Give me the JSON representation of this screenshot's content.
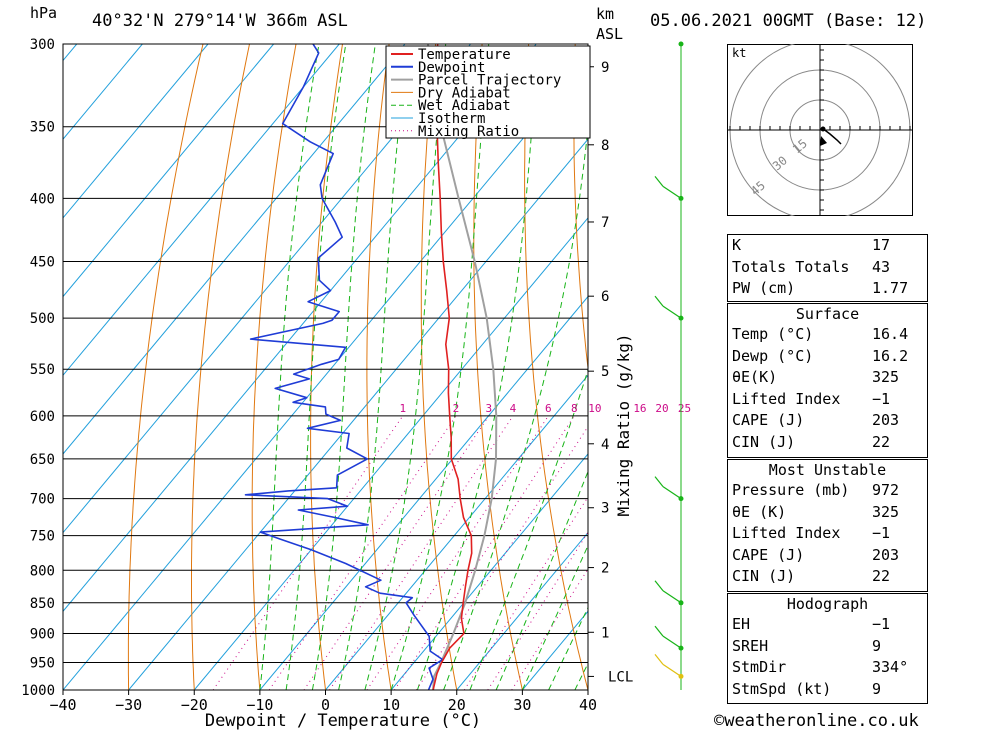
{
  "header": {
    "hpa_label": "hPa",
    "location": "40°32'N  279°14'W  366m  ASL",
    "km_label": "km",
    "asl_label": "ASL",
    "datetime": "05.06.2021  00GMT  (Base: 12)"
  },
  "chart_data": {
    "type": "line",
    "subtype": "skew-T log-P",
    "xlabel": "Dewpoint / Temperature (°C)",
    "ylabel": "hPa",
    "mixing_ratio_axis_label": "Mixing Ratio (g/kg)",
    "x_range": [
      -40,
      40
    ],
    "x_ticks": [
      "−40",
      "−30",
      "−20",
      "−10",
      "0",
      "10",
      "20",
      "30",
      "40"
    ],
    "p_range": [
      300,
      1000
    ],
    "p_ticks": [
      "300",
      "350",
      "400",
      "450",
      "500",
      "550",
      "600",
      "650",
      "700",
      "750",
      "800",
      "850",
      "900",
      "950",
      "1000"
    ],
    "km_ticks": [
      {
        "label": "9",
        "p": 313
      },
      {
        "label": "8",
        "p": 362
      },
      {
        "label": "7",
        "p": 418
      },
      {
        "label": "6",
        "p": 480
      },
      {
        "label": "5",
        "p": 552
      },
      {
        "label": "4",
        "p": 632
      },
      {
        "label": "3",
        "p": 712
      },
      {
        "label": "2",
        "p": 796
      },
      {
        "label": "1",
        "p": 898
      },
      {
        "label": "LCL",
        "p": 975
      }
    ],
    "mixing_ratio_labels": [
      "1",
      "2",
      "3",
      "4",
      "6",
      "8",
      "10",
      "16",
      "20",
      "25"
    ],
    "legend": [
      {
        "name": "Temperature",
        "color": "#e02020",
        "style": "solid"
      },
      {
        "name": "Dewpoint",
        "color": "#1f3cd6",
        "style": "solid"
      },
      {
        "name": "Parcel Trajectory",
        "color": "#a0a0a0",
        "style": "solid"
      },
      {
        "name": "Dry Adiabat",
        "color": "#e07810",
        "style": "solid"
      },
      {
        "name": "Wet Adiabat",
        "color": "#18b418",
        "style": "dashed"
      },
      {
        "name": "Isotherm",
        "color": "#22a0dc",
        "style": "solid"
      },
      {
        "name": "Mixing Ratio",
        "color": "#cc0a88",
        "style": "dotted"
      }
    ],
    "temperature": [
      [
        1000,
        16.4
      ],
      [
        970,
        14.9
      ],
      [
        950,
        14.2
      ],
      [
        925,
        13.6
      ],
      [
        900,
        13.9
      ],
      [
        875,
        11.6
      ],
      [
        850,
        9.9
      ],
      [
        825,
        8.2
      ],
      [
        800,
        6.5
      ],
      [
        775,
        4.9
      ],
      [
        750,
        2.6
      ],
      [
        725,
        -0.9
      ],
      [
        700,
        -3.8
      ],
      [
        675,
        -6.6
      ],
      [
        650,
        -10.2
      ],
      [
        625,
        -12.9
      ],
      [
        600,
        -15.9
      ],
      [
        575,
        -19.0
      ],
      [
        550,
        -22.0
      ],
      [
        525,
        -25.6
      ],
      [
        500,
        -28.4
      ],
      [
        475,
        -32.3
      ],
      [
        450,
        -36.5
      ],
      [
        425,
        -40.7
      ],
      [
        400,
        -45.0
      ],
      [
        375,
        -49.7
      ],
      [
        350,
        -54.6
      ],
      [
        325,
        -60.2
      ],
      [
        300,
        -65.0
      ]
    ],
    "dewpoint": [
      [
        1000,
        15.7
      ],
      [
        980,
        15.0
      ],
      [
        960,
        13.0
      ],
      [
        945,
        14.0
      ],
      [
        930,
        11.0
      ],
      [
        905,
        9.0
      ],
      [
        870,
        4.0
      ],
      [
        850,
        1.2
      ],
      [
        842,
        1.5
      ],
      [
        835,
        -4.0
      ],
      [
        825,
        -7.0
      ],
      [
        815,
        -5.5
      ],
      [
        790,
        -13.0
      ],
      [
        770,
        -20.0
      ],
      [
        755,
        -26.0
      ],
      [
        745,
        -30.0
      ],
      [
        735,
        -14.5
      ],
      [
        725,
        -20.5
      ],
      [
        715,
        -27.0
      ],
      [
        710,
        -20.0
      ],
      [
        700,
        -24.0
      ],
      [
        695,
        -37.0
      ],
      [
        690,
        -31.0
      ],
      [
        686,
        -24.0
      ],
      [
        670,
        -25.5
      ],
      [
        650,
        -23.0
      ],
      [
        637,
        -27.5
      ],
      [
        620,
        -29.0
      ],
      [
        614,
        -36.0
      ],
      [
        605,
        -32.0
      ],
      [
        598,
        -35.0
      ],
      [
        590,
        -36.0
      ],
      [
        585,
        -41.5
      ],
      [
        580,
        -40.0
      ],
      [
        570,
        -46.0
      ],
      [
        560,
        -42.0
      ],
      [
        555,
        -45.0
      ],
      [
        545,
        -42.0
      ],
      [
        540,
        -40.0
      ],
      [
        528,
        -40.5
      ],
      [
        520,
        -56.0
      ],
      [
        505,
        -47.0
      ],
      [
        502,
        -46.0
      ],
      [
        494,
        -46.0
      ],
      [
        485,
        -52.0
      ],
      [
        475,
        -50.0
      ],
      [
        466,
        -53.0
      ],
      [
        447,
        -56.0
      ],
      [
        430,
        -55.0
      ],
      [
        418,
        -58.0
      ],
      [
        400,
        -63.0
      ],
      [
        390,
        -65.0
      ],
      [
        368,
        -67.0
      ],
      [
        360,
        -72.0
      ],
      [
        348,
        -78.5
      ],
      [
        325,
        -80.0
      ],
      [
        305,
        -82.0
      ],
      [
        300,
        -84.0
      ]
    ],
    "parcel": [
      [
        1000,
        16.4
      ],
      [
        975,
        14.8
      ],
      [
        950,
        14.1
      ],
      [
        900,
        12.3
      ],
      [
        850,
        10.2
      ],
      [
        800,
        7.6
      ],
      [
        750,
        4.6
      ],
      [
        700,
        1.0
      ],
      [
        650,
        -3.4
      ],
      [
        600,
        -8.8
      ],
      [
        550,
        -15.2
      ],
      [
        500,
        -22.7
      ],
      [
        450,
        -31.7
      ],
      [
        400,
        -42.2
      ],
      [
        350,
        -54.0
      ],
      [
        300,
        -66.5
      ]
    ],
    "wind_barbs": [
      {
        "p": 300
      },
      {
        "p": 400
      },
      {
        "p": 500
      },
      {
        "p": 700
      },
      {
        "p": 850
      },
      {
        "p": 925
      },
      {
        "p": 975
      }
    ],
    "hodograph": {
      "units_label": "kt",
      "ring_labels": [
        "15",
        "30",
        "45"
      ]
    }
  },
  "indices": {
    "K": {
      "label": "K",
      "value": "17"
    },
    "TT": {
      "label": "Totals Totals",
      "value": "43"
    },
    "PW": {
      "label": "PW (cm)",
      "value": "1.77"
    }
  },
  "surface": {
    "title": "Surface",
    "rows": [
      {
        "label": "Temp (°C)",
        "value": "16.4"
      },
      {
        "label": "Dewp (°C)",
        "value": "16.2"
      },
      {
        "label": "θE(K)",
        "value": "325"
      },
      {
        "label": "Lifted Index",
        "value": "−1"
      },
      {
        "label": "CAPE (J)",
        "value": "203"
      },
      {
        "label": "CIN (J)",
        "value": "22"
      }
    ]
  },
  "most_unstable": {
    "title": "Most Unstable",
    "rows": [
      {
        "label": "Pressure (mb)",
        "value": "972"
      },
      {
        "label": "θE (K)",
        "value": "325"
      },
      {
        "label": "Lifted Index",
        "value": "−1"
      },
      {
        "label": "CAPE (J)",
        "value": "203"
      },
      {
        "label": "CIN (J)",
        "value": "22"
      }
    ]
  },
  "hodograph_stats": {
    "title": "Hodograph",
    "rows": [
      {
        "label": "EH",
        "value": "−1"
      },
      {
        "label": "SREH",
        "value": "9"
      },
      {
        "label": "StmDir",
        "value": "334°"
      },
      {
        "label": "StmSpd (kt)",
        "value": "9"
      }
    ]
  },
  "credit": "©weatheronline.co.uk"
}
